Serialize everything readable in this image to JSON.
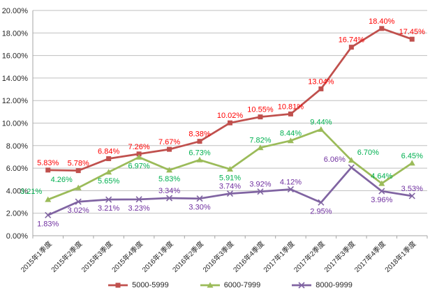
{
  "chart_data": {
    "type": "line",
    "title": "",
    "xlabel": "",
    "ylabel": "",
    "background": "#FFFFFF",
    "gridline_color": "#BFBFBF",
    "axis_color": "#A6A6A6",
    "tick_text_color": "#262626",
    "grid": "horizontal",
    "legend_position": "bottom",
    "ylim": [
      0,
      20
    ],
    "ytick_step": 2,
    "yticks": [
      "0.00%",
      "2.00%",
      "4.00%",
      "6.00%",
      "8.00%",
      "10.00%",
      "12.00%",
      "14.00%",
      "16.00%",
      "18.00%",
      "20.00%"
    ],
    "x": [
      "2015年1季度",
      "2015年2季度",
      "2015年3季度",
      "2015年4季度",
      "2016年1季度",
      "2016年2季度",
      "2016年3季度",
      "2016年4季度",
      "2017年1季度",
      "2017年2季度",
      "2017年3季度",
      "2017年4季度",
      "2018年1季度"
    ],
    "series": [
      {
        "name": "5000-5999",
        "color": "#C0504D",
        "label_color": "#FF0000",
        "marker": "square",
        "values": [
          5.83,
          5.78,
          6.84,
          7.26,
          7.67,
          8.38,
          10.02,
          10.55,
          10.81,
          13.04,
          16.74,
          18.4,
          17.45
        ],
        "label_pos": [
          "above",
          "above",
          "above",
          "above",
          "above",
          "above",
          "above",
          "above",
          "above",
          "above",
          "above",
          "above",
          "above"
        ]
      },
      {
        "name": "6000-7999",
        "color": "#9BBB59",
        "label_color": "#00B050",
        "marker": "triangle",
        "values": [
          3.21,
          4.26,
          5.65,
          6.97,
          5.83,
          6.73,
          5.91,
          7.82,
          8.44,
          9.44,
          6.7,
          4.64,
          6.45
        ],
        "label_pos": [
          "above-left",
          "above-left",
          "below",
          "below",
          "below",
          "above",
          "below",
          "above",
          "above",
          "above",
          "above-right",
          "above",
          "above"
        ]
      },
      {
        "name": "8000-9999",
        "color": "#8064A2",
        "label_color": "#7030A0",
        "marker": "x",
        "values": [
          1.83,
          3.02,
          3.21,
          3.23,
          3.34,
          3.3,
          3.74,
          3.92,
          4.12,
          2.95,
          6.06,
          3.96,
          3.53
        ],
        "label_pos": [
          "below",
          "below",
          "below",
          "below",
          "above",
          "below",
          "above",
          "above",
          "above",
          "below",
          "above-left",
          "below",
          "above"
        ]
      }
    ]
  }
}
